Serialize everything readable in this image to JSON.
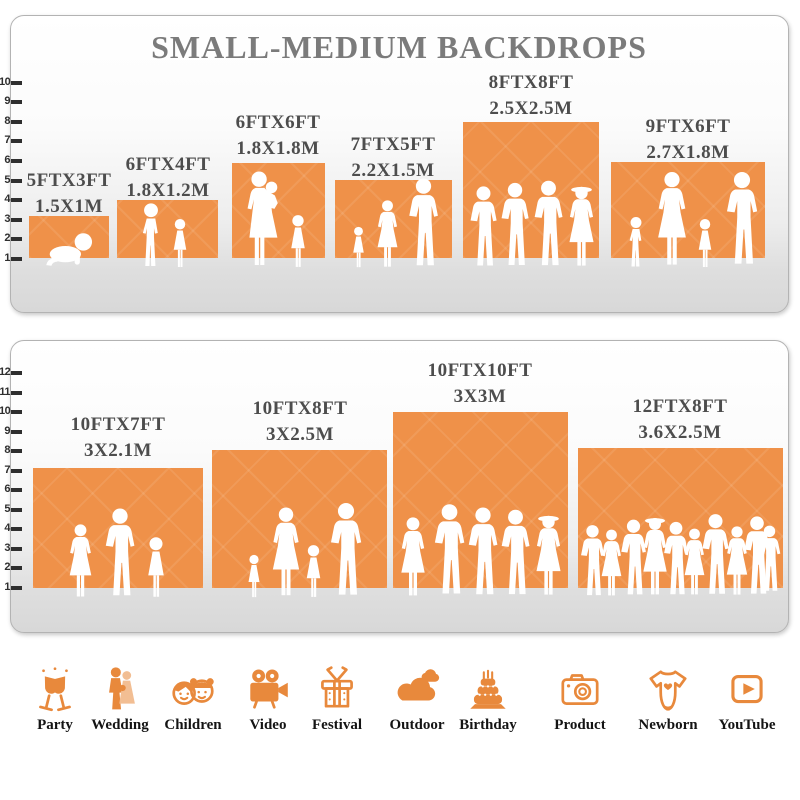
{
  "title": "SMALL-MEDIUM BACKDROPS",
  "colors": {
    "backdrop_orange": "#EF9149",
    "icon_orange": "#E8893C",
    "title_gray": "#7B7B7B",
    "label_gray": "#4D4D4D",
    "ruler_dark": "#2E2E2E"
  },
  "panels": {
    "top": {
      "ruler_ticks": [
        "1",
        "2",
        "3",
        "4",
        "5",
        "6",
        "7",
        "8",
        "9",
        "10"
      ],
      "backdrops": [
        {
          "size_ft": "5FTX3FT",
          "size_m": "1.5X1M",
          "scene": "crawling baby"
        },
        {
          "size_ft": "6FTX4FT",
          "size_m": "1.8X1.2M",
          "scene": "boy and girl"
        },
        {
          "size_ft": "6FTX6FT",
          "size_m": "1.8X1.8M",
          "scene": "mother holding baby with girl"
        },
        {
          "size_ft": "7FTX5FT",
          "size_m": "2.2X1.5M",
          "scene": "toddler, mother and father"
        },
        {
          "size_ft": "8FTX8FT",
          "size_m": "2.5X2.5M",
          "scene": "four posing adults"
        },
        {
          "size_ft": "9FTX6FT",
          "size_m": "2.7X1.8M",
          "scene": "family of four holding hands"
        }
      ]
    },
    "bottom": {
      "ruler_ticks": [
        "1",
        "2",
        "3",
        "4",
        "5",
        "6",
        "7",
        "8",
        "9",
        "10",
        "11",
        "12"
      ],
      "backdrops": [
        {
          "size_ft": "10FTX7FT",
          "size_m": "3X2.1M",
          "scene": "couple with girl"
        },
        {
          "size_ft": "10FTX8FT",
          "size_m": "3X2.5M",
          "scene": "family of four holding hands"
        },
        {
          "size_ft": "10FTX10FT",
          "size_m": "3X3M",
          "scene": "five adults"
        },
        {
          "size_ft": "12FTX8FT",
          "size_m": "3.6X2.5M",
          "scene": "group of ten people"
        }
      ]
    }
  },
  "categories": [
    {
      "label": "Party",
      "icon": "party-glasses-icon"
    },
    {
      "label": "Wedding",
      "icon": "wedding-couple-icon"
    },
    {
      "label": "Children",
      "icon": "children-faces-icon"
    },
    {
      "label": "Video",
      "icon": "video-camera-icon"
    },
    {
      "label": "Festival",
      "icon": "festival-gift-icon"
    },
    {
      "label": "Outdoor",
      "icon": "outdoor-clouds-icon"
    },
    {
      "label": "Birthday",
      "icon": "birthday-cake-icon"
    },
    {
      "label": "Product",
      "icon": "product-camera-icon"
    },
    {
      "label": "Newborn",
      "icon": "newborn-onesie-icon"
    },
    {
      "label": "YouTube",
      "icon": "youtube-play-icon"
    }
  ],
  "chart_data": {
    "type": "bar",
    "title": "SMALL-MEDIUM BACKDROPS",
    "ylabel": "feet",
    "groups": [
      {
        "panel": "top",
        "ruler_range": [
          1,
          10
        ],
        "items": [
          {
            "label_ft": "5FTX3FT",
            "label_m": "1.5X1M",
            "width_ft": 5,
            "height_ft": 3
          },
          {
            "label_ft": "6FTX4FT",
            "label_m": "1.8X1.2M",
            "width_ft": 6,
            "height_ft": 4
          },
          {
            "label_ft": "6FTX6FT",
            "label_m": "1.8X1.8M",
            "width_ft": 6,
            "height_ft": 6
          },
          {
            "label_ft": "7FTX5FT",
            "label_m": "2.2X1.5M",
            "width_ft": 7,
            "height_ft": 5
          },
          {
            "label_ft": "8FTX8FT",
            "label_m": "2.5X2.5M",
            "width_ft": 8,
            "height_ft": 8
          },
          {
            "label_ft": "9FTX6FT",
            "label_m": "2.7X1.8M",
            "width_ft": 9,
            "height_ft": 6
          }
        ]
      },
      {
        "panel": "bottom",
        "ruler_range": [
          1,
          12
        ],
        "items": [
          {
            "label_ft": "10FTX7FT",
            "label_m": "3X2.1M",
            "width_ft": 10,
            "height_ft": 7
          },
          {
            "label_ft": "10FTX8FT",
            "label_m": "3X2.5M",
            "width_ft": 10,
            "height_ft": 8
          },
          {
            "label_ft": "10FTX10FT",
            "label_m": "3X3M",
            "width_ft": 10,
            "height_ft": 10
          },
          {
            "label_ft": "12FTX8FT",
            "label_m": "3.6X2.5M",
            "width_ft": 12,
            "height_ft": 8
          }
        ]
      }
    ]
  }
}
